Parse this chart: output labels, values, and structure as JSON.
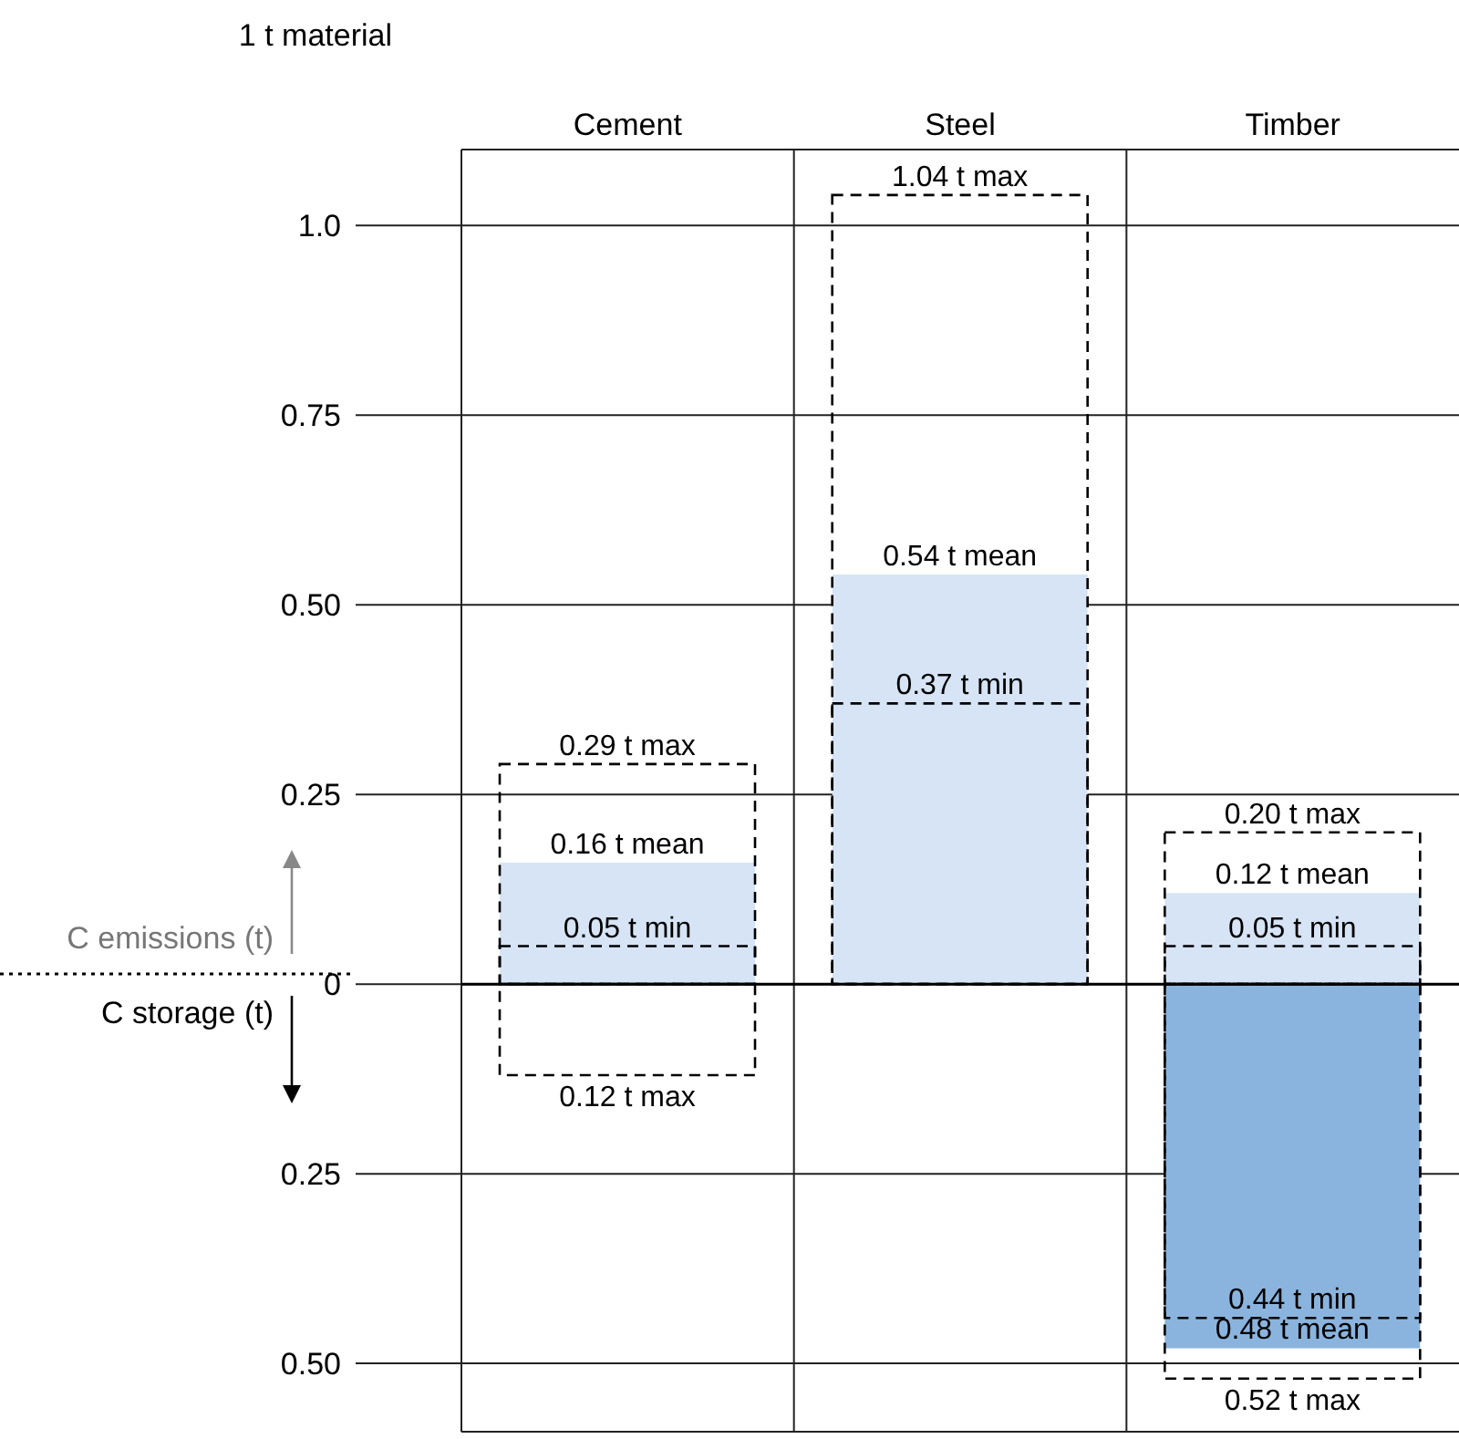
{
  "chart_data": {
    "type": "bar",
    "categories": [
      "Cement",
      "Steel",
      "Timber"
    ],
    "ylim": [
      -0.59,
      1.1
    ],
    "yticks": [
      {
        "value": -0.5,
        "label": "0.50"
      },
      {
        "value": -0.25,
        "label": "0.25"
      },
      0,
      0.25,
      {
        "value": 0.5,
        "label": "0.50"
      },
      0.75,
      {
        "value": 1,
        "label": "1.0"
      }
    ],
    "grid": true,
    "ref_lines": [
      {
        "axis": "y",
        "value": 0,
        "color": "#000000"
      }
    ],
    "series": [
      {
        "color": "#d6e4f5",
        "values": [
          0.16,
          0.54,
          0.12
        ],
        "value_labels": [
          "0.16 t mean",
          "0.54 t mean",
          "0.12 t mean"
        ]
      },
      {
        "color": "#8ab4de",
        "values": [
          null,
          null,
          0.48
        ],
        "base": [
          null,
          null,
          -0.48
        ],
        "value_labels": [
          null,
          null,
          "0.48 t mean"
        ]
      },
      {
        "color": "#000000",
        "line_style": "dashed",
        "values": [
          0.29,
          1.04,
          0.2
        ],
        "value_labels": [
          "0.29 t max",
          "1.04 t max",
          "0.20 t max"
        ]
      },
      {
        "color": "#000000",
        "line_style": "dashed",
        "values": [
          0.12,
          null,
          0.52
        ],
        "base": [
          -0.12,
          null,
          -0.52
        ],
        "value_labels": [
          "0.12 t max",
          null,
          "0.52 t max"
        ]
      },
      {
        "color": "#000000",
        "line_style": "dashed",
        "values": [
          0.05,
          0.37,
          0.05
        ],
        "value_labels": [
          "0.05 t min",
          "0.37 t min",
          "0.05 t min"
        ]
      },
      {
        "color": "#000000",
        "line_style": "dashed",
        "values": [
          null,
          null,
          0.44
        ],
        "base": [
          null,
          null,
          -0.44
        ],
        "value_labels": [
          null,
          null,
          "0.44 t min"
        ]
      }
    ],
    "annotations": [
      "1 t material",
      "C emissions (t)",
      "C storage (t)"
    ]
  }
}
